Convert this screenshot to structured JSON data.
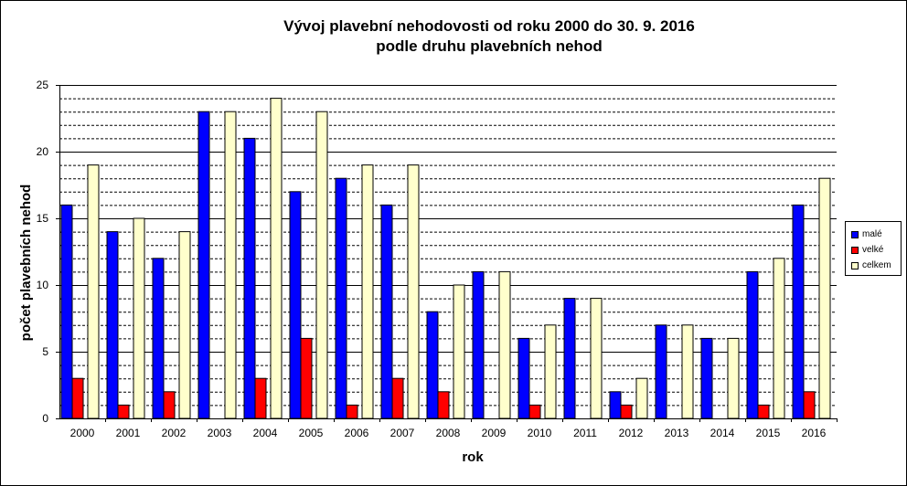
{
  "chart_data": {
    "type": "bar",
    "title": "Vývoj plavební nehodovosti od roku 2000 do 30. 9. 2016",
    "subtitle": "podle druhu plavebních nehod",
    "xlabel": "rok",
    "ylabel": "počet plavebních nehod",
    "ylim": [
      0,
      25
    ],
    "yticks": [
      "0",
      "5",
      "10",
      "15",
      "20",
      "25"
    ],
    "categories": [
      "2000",
      "2001",
      "2002",
      "2003",
      "2004",
      "2005",
      "2006",
      "2007",
      "2008",
      "2009",
      "2010",
      "2011",
      "2012",
      "2013",
      "2014",
      "2015",
      "2016"
    ],
    "series": [
      {
        "name": "malé",
        "color": "#0000ff",
        "values": [
          16,
          14,
          12,
          23,
          21,
          17,
          18,
          16,
          8,
          11,
          6,
          9,
          2,
          7,
          6,
          11,
          16
        ]
      },
      {
        "name": "velké",
        "color": "#ff0000",
        "values": [
          3,
          1,
          2,
          0,
          3,
          6,
          1,
          3,
          2,
          0,
          1,
          0,
          1,
          0,
          0,
          1,
          2
        ]
      },
      {
        "name": "celkem",
        "color": "#ffffcc",
        "values": [
          19,
          15,
          14,
          23,
          24,
          23,
          19,
          19,
          10,
          11,
          7,
          9,
          3,
          7,
          6,
          12,
          18
        ]
      }
    ],
    "grid": true,
    "legend_position": "right"
  }
}
